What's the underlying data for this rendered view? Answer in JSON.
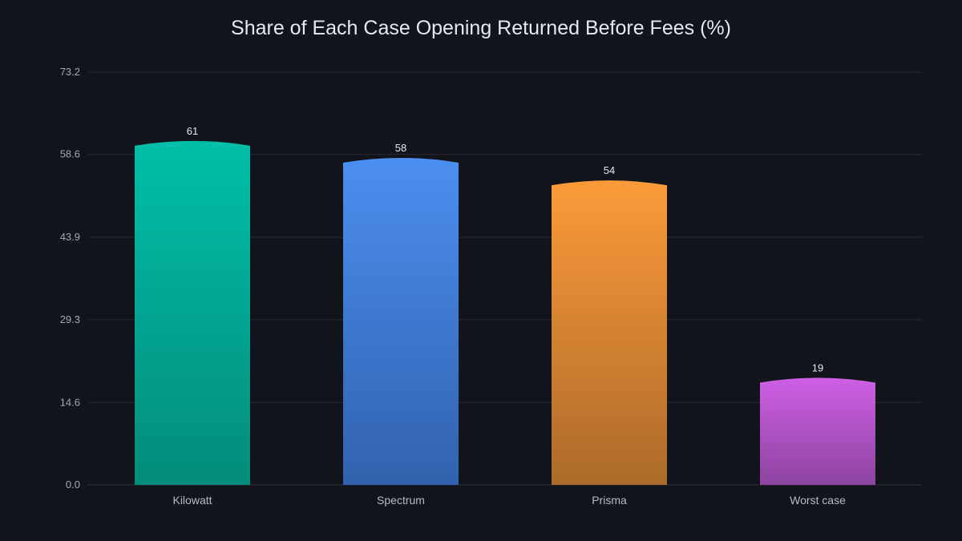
{
  "chart_data": {
    "type": "bar",
    "title": "Share of Each Case Opening Returned Before Fees (%)",
    "xlabel": "",
    "ylabel": "",
    "categories": [
      "Kilowatt",
      "Spectrum",
      "Prisma",
      "Worst case"
    ],
    "values": [
      61,
      58,
      54,
      19
    ],
    "ylim": [
      0,
      73.2
    ],
    "yticks": [
      "0.0",
      "14.6",
      "29.3",
      "43.9",
      "58.6",
      "73.2"
    ],
    "grid": true,
    "legend": "none",
    "colors": [
      {
        "top": "#00bfa9",
        "bottom": "#038c7a"
      },
      {
        "top": "#4b8ff0",
        "bottom": "#3162ad"
      },
      {
        "top": "#fb9b39",
        "bottom": "#ac6a2a"
      },
      {
        "top": "#cf5fe4",
        "bottom": "#8c44a0"
      }
    ],
    "background": "#12141b"
  }
}
